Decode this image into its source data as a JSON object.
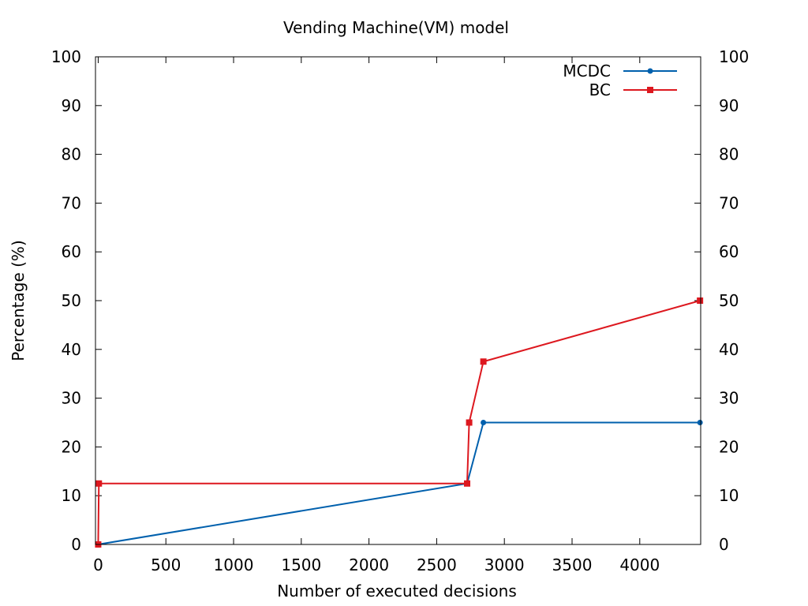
{
  "chart_data": {
    "type": "line",
    "title": "Vending Machine(VM) model",
    "xlabel": "Number of executed decisions",
    "ylabel": "Percentage (%)",
    "xlim": [
      -20,
      4450
    ],
    "ylim": [
      0,
      100
    ],
    "x_ticks": [
      "0",
      "500",
      "1000",
      "1500",
      "2000",
      "2500",
      "3000",
      "3500",
      "4000"
    ],
    "x_tick_values": [
      0,
      500,
      1000,
      1500,
      2000,
      2500,
      3000,
      3500,
      4000
    ],
    "y_ticks": [
      "0",
      "10",
      "20",
      "30",
      "40",
      "50",
      "60",
      "70",
      "80",
      "90",
      "100"
    ],
    "y_tick_values": [
      0,
      10,
      20,
      30,
      40,
      50,
      60,
      70,
      80,
      90,
      100
    ],
    "y2_ticks": [
      "0",
      "10",
      "20",
      "30",
      "40",
      "50",
      "60",
      "70",
      "80",
      "90",
      "100"
    ],
    "grid": false,
    "legend_position": "top-right",
    "series": [
      {
        "name": "MCDC",
        "color": "#0060ad",
        "marker": "circle",
        "points": [
          [
            0,
            0
          ],
          [
            2725,
            12.5
          ],
          [
            2845,
            25
          ],
          [
            4445,
            25
          ]
        ]
      },
      {
        "name": "BC",
        "color": "#dd181f",
        "marker": "square",
        "points": [
          [
            0,
            0
          ],
          [
            5,
            12.5
          ],
          [
            2725,
            12.5
          ],
          [
            2740,
            25
          ],
          [
            2845,
            37.5
          ],
          [
            4445,
            50
          ]
        ]
      }
    ]
  }
}
